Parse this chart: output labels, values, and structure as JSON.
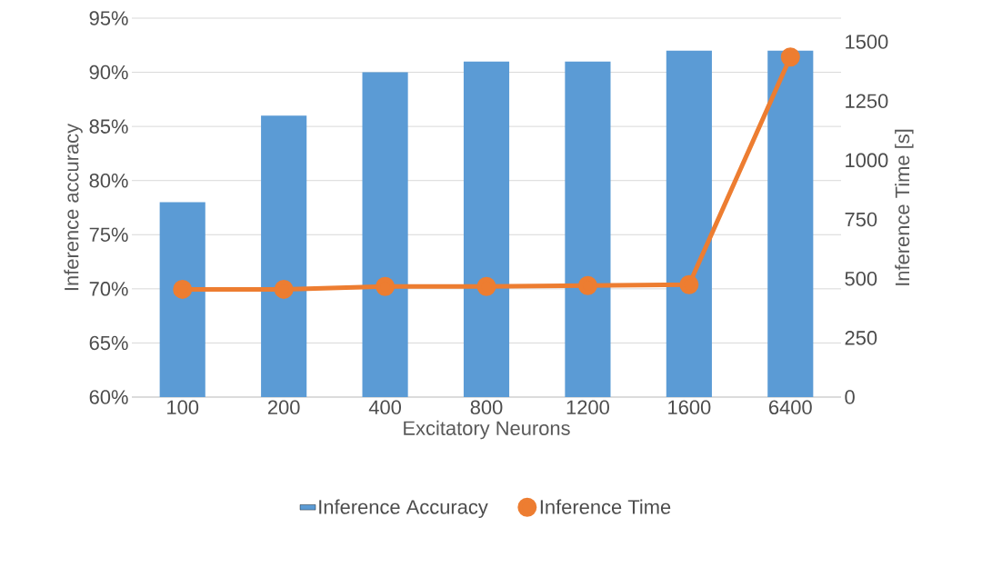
{
  "chart_data": {
    "type": "bar",
    "xlabel": "Excitatory Neurons",
    "ylabel": "Inference accuracy",
    "y2label": "Inference Time [s]",
    "categories": [
      "100",
      "200",
      "400",
      "800",
      "1200",
      "1600",
      "6400"
    ],
    "series": [
      {
        "name": "Inference Accuracy",
        "color": "#5b9bd5",
        "values": [
          78,
          86,
          90,
          91,
          91,
          92,
          92
        ]
      },
      {
        "name": "Inference Time",
        "type": "line",
        "axis": "y2",
        "color": "#ed7d31",
        "marker": "circle",
        "values": [
          455,
          455,
          467,
          467,
          471,
          475,
          1436
        ]
      }
    ],
    "ylim": [
      60,
      95
    ],
    "yticks": [
      {
        "value": 60,
        "label": "60%"
      },
      {
        "value": 65,
        "label": "65%"
      },
      {
        "value": 70,
        "label": "70%"
      },
      {
        "value": 75,
        "label": "75%"
      },
      {
        "value": 80,
        "label": "80%"
      },
      {
        "value": 85,
        "label": "85%"
      },
      {
        "value": 90,
        "label": "90%"
      },
      {
        "value": 95,
        "label": "95%"
      }
    ],
    "y2lim": [
      0,
      1600
    ],
    "y2ticks": [
      0,
      250,
      500,
      750,
      1000,
      1250,
      1500
    ],
    "grid": "y",
    "legend": "bottom"
  }
}
